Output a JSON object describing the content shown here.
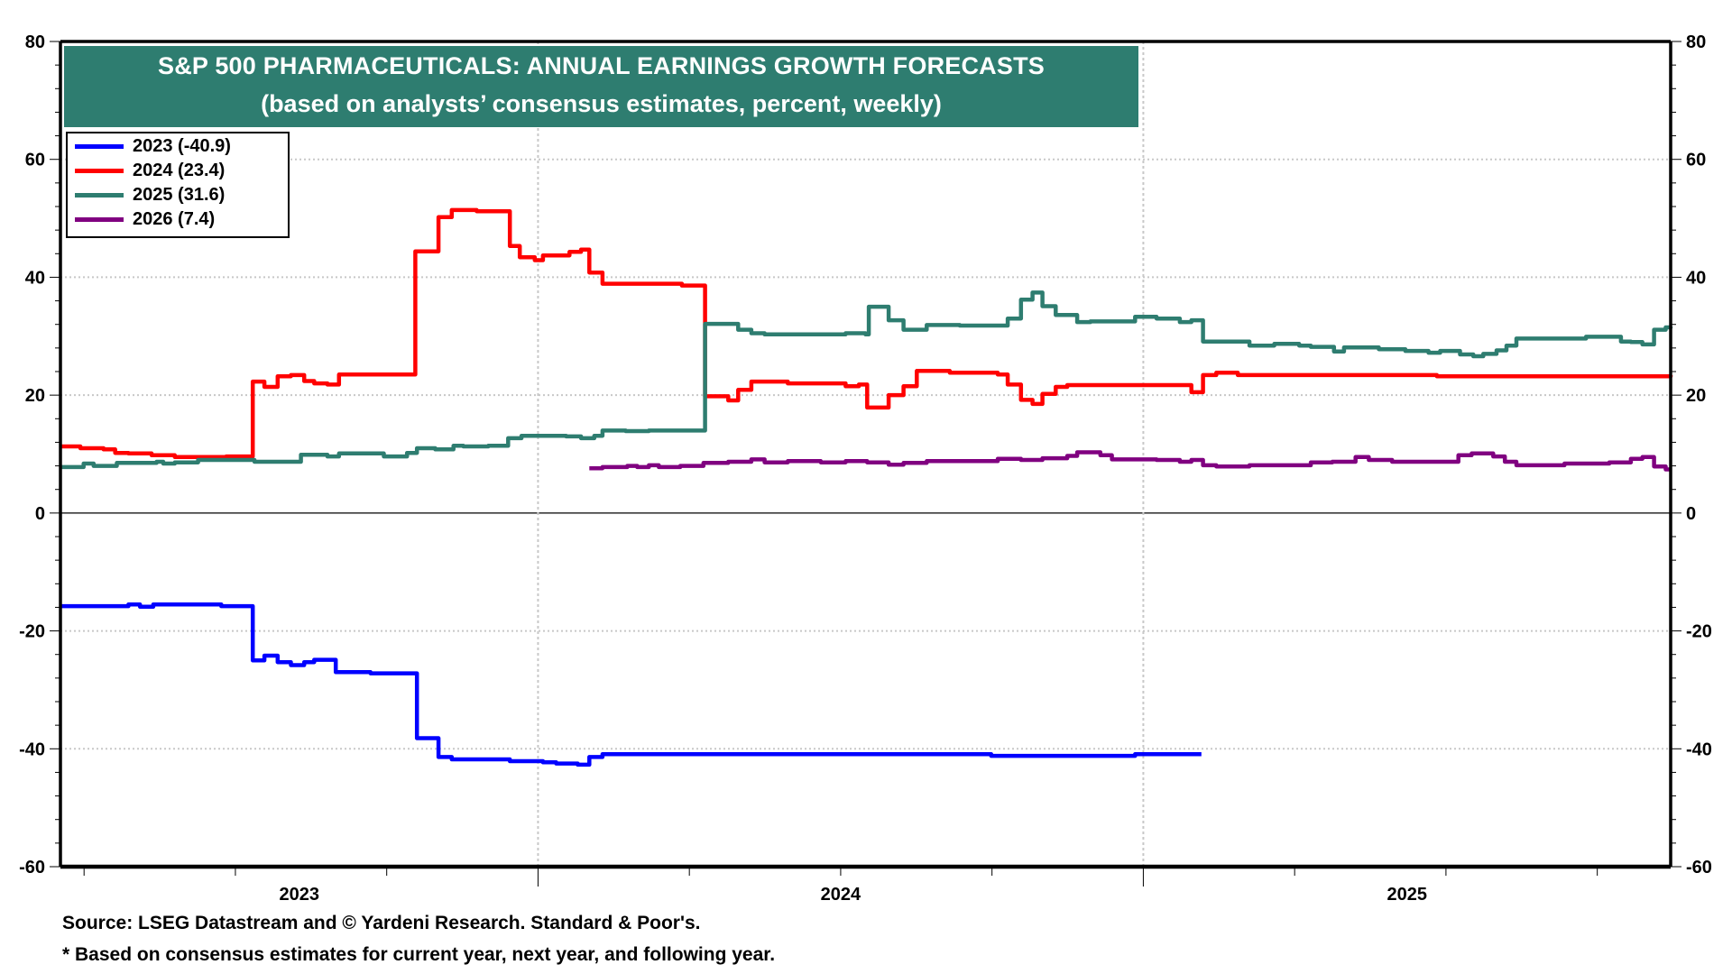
{
  "chart_data": {
    "type": "line",
    "title": "S&P 500 PHARMACEUTICALS: ANNUAL EARNINGS GROWTH FORECASTS",
    "subtitle": "(based on analysts’ consensus estimates, percent, weekly)",
    "xlabel": "",
    "ylabel": "",
    "x_range": [
      "2023-03-19",
      "2025-11-15"
    ],
    "x_ticks": [
      "2023",
      "2024",
      "2025"
    ],
    "ylim": [
      -60,
      80
    ],
    "y_ticks": [
      80,
      60,
      40,
      20,
      0,
      -20,
      -40,
      -60
    ],
    "y_ticks_right": [
      80,
      60,
      40,
      20,
      0,
      -20,
      -40,
      -60
    ],
    "grid": true,
    "legend_position": "top-left",
    "series": [
      {
        "name": "2023",
        "legend_label": "2023 (-40.9)",
        "color": "#0000ff",
        "step": true,
        "points": [
          [
            "2023-03-19",
            -15.8
          ],
          [
            "2023-04-29",
            -15.5
          ],
          [
            "2023-05-06",
            -15.9
          ],
          [
            "2023-05-14",
            -15.5
          ],
          [
            "2023-06-24",
            -15.8
          ],
          [
            "2023-07-13",
            -25.0
          ],
          [
            "2023-07-20",
            -24.2
          ],
          [
            "2023-07-28",
            -25.3
          ],
          [
            "2023-08-05",
            -25.8
          ],
          [
            "2023-08-13",
            -25.3
          ],
          [
            "2023-08-19",
            -24.9
          ],
          [
            "2023-09-01",
            -27.0
          ],
          [
            "2023-09-22",
            -27.2
          ],
          [
            "2023-10-20",
            -38.2
          ],
          [
            "2023-11-02",
            -41.4
          ],
          [
            "2023-11-10",
            -41.8
          ],
          [
            "2023-12-15",
            -42.1
          ],
          [
            "2024-01-04",
            -42.3
          ],
          [
            "2024-01-12",
            -42.5
          ],
          [
            "2024-01-25",
            -42.7
          ],
          [
            "2024-02-01",
            -41.4
          ],
          [
            "2024-02-09",
            -40.9
          ],
          [
            "2024-10-01",
            -41.2
          ],
          [
            "2024-12-27",
            -40.9
          ],
          [
            "2025-02-05",
            -40.9
          ]
        ]
      },
      {
        "name": "2024",
        "legend_label": "2024 (23.4)",
        "color": "#ff0000",
        "step": true,
        "points": [
          [
            "2023-03-19",
            11.3
          ],
          [
            "2023-03-31",
            11.0
          ],
          [
            "2023-04-14",
            10.8
          ],
          [
            "2023-04-21",
            10.2
          ],
          [
            "2023-04-29",
            10.1
          ],
          [
            "2023-05-13",
            9.8
          ],
          [
            "2023-05-27",
            9.5
          ],
          [
            "2023-06-27",
            9.6
          ],
          [
            "2023-07-13",
            22.3
          ],
          [
            "2023-07-20",
            21.4
          ],
          [
            "2023-07-28",
            23.2
          ],
          [
            "2023-08-05",
            23.4
          ],
          [
            "2023-08-13",
            22.4
          ],
          [
            "2023-08-19",
            22.0
          ],
          [
            "2023-08-27",
            21.8
          ],
          [
            "2023-09-03",
            23.5
          ],
          [
            "2023-10-19",
            44.4
          ],
          [
            "2023-11-02",
            50.2
          ],
          [
            "2023-11-10",
            51.4
          ],
          [
            "2023-11-25",
            51.2
          ],
          [
            "2023-12-15",
            45.3
          ],
          [
            "2023-12-21",
            43.4
          ],
          [
            "2023-12-30",
            42.9
          ],
          [
            "2024-01-04",
            43.7
          ],
          [
            "2024-01-20",
            44.3
          ],
          [
            "2024-01-27",
            44.7
          ],
          [
            "2024-02-01",
            40.8
          ],
          [
            "2024-02-09",
            38.9
          ],
          [
            "2024-03-28",
            38.6
          ],
          [
            "2024-04-11",
            19.8
          ],
          [
            "2024-04-25",
            19.1
          ],
          [
            "2024-05-01",
            20.9
          ],
          [
            "2024-05-09",
            22.3
          ],
          [
            "2024-05-31",
            22.0
          ],
          [
            "2024-07-05",
            21.5
          ],
          [
            "2024-07-13",
            21.8
          ],
          [
            "2024-07-18",
            17.9
          ],
          [
            "2024-07-31",
            20.0
          ],
          [
            "2024-08-09",
            21.5
          ],
          [
            "2024-08-17",
            24.1
          ],
          [
            "2024-09-06",
            23.8
          ],
          [
            "2024-10-05",
            23.5
          ],
          [
            "2024-10-11",
            21.8
          ],
          [
            "2024-10-19",
            19.2
          ],
          [
            "2024-10-26",
            18.5
          ],
          [
            "2024-11-01",
            20.2
          ],
          [
            "2024-11-09",
            21.4
          ],
          [
            "2024-11-16",
            21.7
          ],
          [
            "2025-01-23",
            21.7
          ],
          [
            "2025-01-30",
            20.5
          ],
          [
            "2025-02-06",
            23.4
          ],
          [
            "2025-02-14",
            23.8
          ],
          [
            "2025-02-27",
            23.4
          ],
          [
            "2025-06-27",
            23.2
          ],
          [
            "2025-11-15",
            23.4
          ]
        ]
      },
      {
        "name": "2025",
        "legend_label": "2025 (31.6)",
        "color": "#2e7d70",
        "step": true,
        "points": [
          [
            "2023-03-19",
            7.8
          ],
          [
            "2023-04-02",
            8.4
          ],
          [
            "2023-04-08",
            8.0
          ],
          [
            "2023-04-22",
            8.5
          ],
          [
            "2023-05-16",
            8.7
          ],
          [
            "2023-05-20",
            8.4
          ],
          [
            "2023-05-27",
            8.6
          ],
          [
            "2023-06-10",
            9.0
          ],
          [
            "2023-07-14",
            8.7
          ],
          [
            "2023-08-11",
            9.9
          ],
          [
            "2023-08-27",
            9.6
          ],
          [
            "2023-09-03",
            10.1
          ],
          [
            "2023-09-30",
            9.6
          ],
          [
            "2023-10-14",
            10.2
          ],
          [
            "2023-10-20",
            11.0
          ],
          [
            "2023-10-31",
            10.8
          ],
          [
            "2023-11-11",
            11.4
          ],
          [
            "2023-11-17",
            11.3
          ],
          [
            "2023-12-02",
            11.4
          ],
          [
            "2023-12-14",
            12.7
          ],
          [
            "2023-12-22",
            13.1
          ],
          [
            "2024-01-18",
            13.0
          ],
          [
            "2024-01-27",
            12.7
          ],
          [
            "2024-02-04",
            13.1
          ],
          [
            "2024-02-09",
            14.0
          ],
          [
            "2024-02-23",
            13.9
          ],
          [
            "2024-03-08",
            14.0
          ],
          [
            "2024-04-11",
            32.1
          ],
          [
            "2024-05-01",
            31.1
          ],
          [
            "2024-05-09",
            30.5
          ],
          [
            "2024-05-17",
            30.3
          ],
          [
            "2024-07-05",
            30.5
          ],
          [
            "2024-07-17",
            30.3
          ],
          [
            "2024-07-19",
            35.0
          ],
          [
            "2024-07-31",
            32.7
          ],
          [
            "2024-08-09",
            31.1
          ],
          [
            "2024-08-23",
            31.9
          ],
          [
            "2024-09-12",
            31.8
          ],
          [
            "2024-10-11",
            33.0
          ],
          [
            "2024-10-19",
            36.2
          ],
          [
            "2024-10-26",
            37.4
          ],
          [
            "2024-11-01",
            35.1
          ],
          [
            "2024-11-09",
            33.6
          ],
          [
            "2024-11-22",
            32.4
          ],
          [
            "2024-11-30",
            32.5
          ],
          [
            "2024-12-27",
            33.3
          ],
          [
            "2025-01-09",
            33.0
          ],
          [
            "2025-01-23",
            32.4
          ],
          [
            "2025-01-30",
            32.7
          ],
          [
            "2025-02-06",
            29.1
          ],
          [
            "2025-03-06",
            28.4
          ],
          [
            "2025-03-21",
            28.7
          ],
          [
            "2025-04-05",
            28.4
          ],
          [
            "2025-04-12",
            28.2
          ],
          [
            "2025-04-26",
            27.4
          ],
          [
            "2025-05-02",
            28.1
          ],
          [
            "2025-05-23",
            27.8
          ],
          [
            "2025-06-08",
            27.5
          ],
          [
            "2025-06-22",
            27.2
          ],
          [
            "2025-06-29",
            27.5
          ],
          [
            "2025-07-11",
            26.9
          ],
          [
            "2025-07-19",
            26.6
          ],
          [
            "2025-07-25",
            27.0
          ],
          [
            "2025-08-02",
            27.6
          ],
          [
            "2025-08-08",
            28.4
          ],
          [
            "2025-08-14",
            29.6
          ],
          [
            "2025-09-25",
            29.9
          ],
          [
            "2025-10-16",
            29.1
          ],
          [
            "2025-10-22",
            29.0
          ],
          [
            "2025-10-29",
            28.6
          ],
          [
            "2025-11-05",
            31.1
          ],
          [
            "2025-11-12",
            31.5
          ],
          [
            "2025-11-15",
            31.6
          ]
        ]
      },
      {
        "name": "2026",
        "legend_label": "2026 (7.4)",
        "color": "#800080",
        "step": true,
        "points": [
          [
            "2024-02-01",
            7.6
          ],
          [
            "2024-02-09",
            7.8
          ],
          [
            "2024-02-24",
            8.0
          ],
          [
            "2024-03-01",
            7.8
          ],
          [
            "2024-03-08",
            8.1
          ],
          [
            "2024-03-14",
            7.8
          ],
          [
            "2024-03-27",
            8.0
          ],
          [
            "2024-04-10",
            8.5
          ],
          [
            "2024-04-25",
            8.7
          ],
          [
            "2024-05-09",
            9.1
          ],
          [
            "2024-05-17",
            8.6
          ],
          [
            "2024-05-31",
            8.8
          ],
          [
            "2024-06-20",
            8.6
          ],
          [
            "2024-07-05",
            8.8
          ],
          [
            "2024-07-18",
            8.6
          ],
          [
            "2024-07-31",
            8.2
          ],
          [
            "2024-08-09",
            8.5
          ],
          [
            "2024-08-23",
            8.8
          ],
          [
            "2024-09-12",
            8.8
          ],
          [
            "2024-10-05",
            9.2
          ],
          [
            "2024-10-11",
            9.2
          ],
          [
            "2024-10-19",
            9.0
          ],
          [
            "2024-11-01",
            9.3
          ],
          [
            "2024-11-16",
            9.7
          ],
          [
            "2024-11-22",
            10.3
          ],
          [
            "2024-12-06",
            9.8
          ],
          [
            "2024-12-13",
            9.1
          ],
          [
            "2025-01-09",
            9.0
          ],
          [
            "2025-01-23",
            8.7
          ],
          [
            "2025-01-30",
            9.0
          ],
          [
            "2025-02-06",
            8.1
          ],
          [
            "2025-02-14",
            7.9
          ],
          [
            "2025-03-06",
            8.1
          ],
          [
            "2025-04-12",
            8.6
          ],
          [
            "2025-04-25",
            8.7
          ],
          [
            "2025-05-09",
            9.5
          ],
          [
            "2025-05-17",
            9.0
          ],
          [
            "2025-05-31",
            8.7
          ],
          [
            "2025-07-10",
            9.8
          ],
          [
            "2025-07-18",
            10.1
          ],
          [
            "2025-07-31",
            9.6
          ],
          [
            "2025-08-07",
            8.7
          ],
          [
            "2025-08-14",
            8.1
          ],
          [
            "2025-09-12",
            8.4
          ],
          [
            "2025-10-09",
            8.6
          ],
          [
            "2025-10-22",
            9.2
          ],
          [
            "2025-10-29",
            9.5
          ],
          [
            "2025-11-05",
            7.9
          ],
          [
            "2025-11-12",
            7.4
          ],
          [
            "2025-11-15",
            7.4
          ]
        ]
      }
    ],
    "footnotes": [
      "Source: LSEG Datastream and © Yardeni Research. Standard & Poor's.",
      "* Based on consensus estimates for current year, next year, and following year."
    ]
  }
}
